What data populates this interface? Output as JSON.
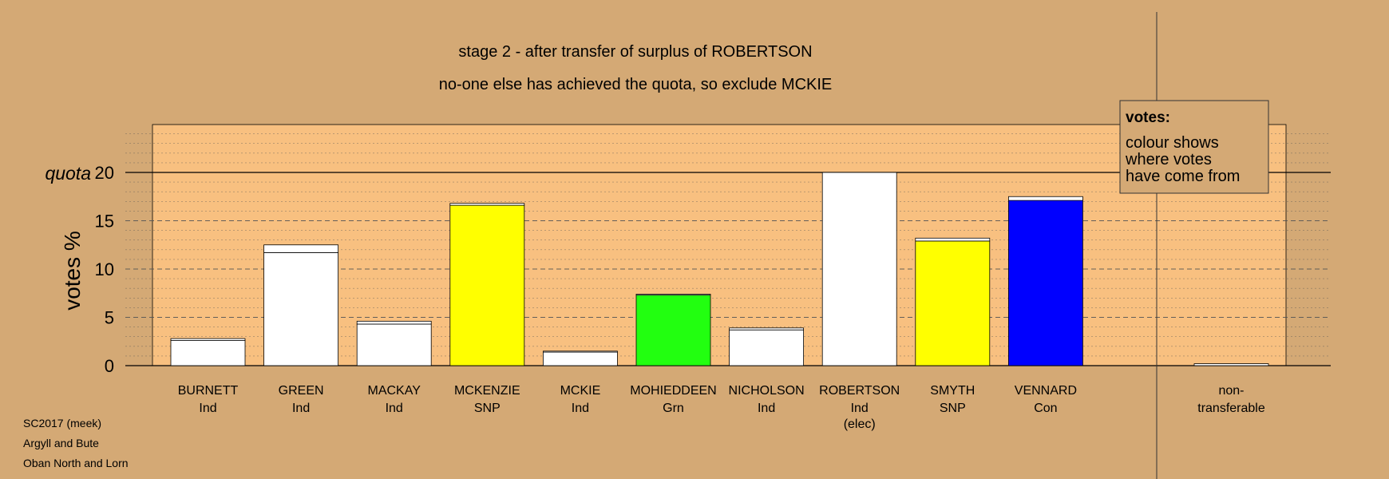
{
  "chart_data": {
    "type": "bar",
    "title": "stage 2 - after transfer of surplus of ROBERTSON",
    "subtitle": "no-one else has achieved the quota, so exclude MCKIE",
    "ylabel": "votes %",
    "ylim": [
      0,
      25
    ],
    "yticks": [
      0,
      5,
      10,
      15,
      20
    ],
    "quota": {
      "label": "quota",
      "value": 20
    },
    "candidates": [
      {
        "name": "BURNETT",
        "party": "Ind",
        "note": "",
        "base": 2.6,
        "transfer": 0.2,
        "base_color": "#ffffff"
      },
      {
        "name": "GREEN",
        "party": "Ind",
        "note": "",
        "base": 11.7,
        "transfer": 0.8,
        "base_color": "#ffffff"
      },
      {
        "name": "MACKAY",
        "party": "Ind",
        "note": "",
        "base": 4.3,
        "transfer": 0.3,
        "base_color": "#ffffff"
      },
      {
        "name": "MCKENZIE",
        "party": "SNP",
        "note": "",
        "base": 16.6,
        "transfer": 0.2,
        "base_color": "#ffff00"
      },
      {
        "name": "MCKIE",
        "party": "Ind",
        "note": "",
        "base": 1.4,
        "transfer": 0.1,
        "base_color": "#ffffff"
      },
      {
        "name": "MOHIEDDEEN",
        "party": "Grn",
        "note": "",
        "base": 7.3,
        "transfer": 0.1,
        "base_color": "#22ff10"
      },
      {
        "name": "NICHOLSON",
        "party": "Ind",
        "note": "",
        "base": 3.7,
        "transfer": 0.2,
        "base_color": "#ffffff"
      },
      {
        "name": "ROBERTSON",
        "party": "Ind",
        "note": "(elec)",
        "base": 20.0,
        "transfer": 0.0,
        "base_color": "#ffffff"
      },
      {
        "name": "SMYTH",
        "party": "SNP",
        "note": "",
        "base": 12.9,
        "transfer": 0.3,
        "base_color": "#ffff00"
      },
      {
        "name": "VENNARD",
        "party": "Con",
        "note": "",
        "base": 17.1,
        "transfer": 0.4,
        "base_color": "#0000ff"
      }
    ],
    "nontransferable": {
      "label_line1": "non-",
      "label_line2": "transferable",
      "value": 0.2
    },
    "legend": {
      "heading": "votes:",
      "lines": [
        "colour shows",
        "where votes",
        "have come from"
      ],
      "placement": "top-right"
    },
    "grid": true
  },
  "footer": {
    "line1": "SC2017 (meek)",
    "line2": "Argyll and Bute",
    "line3": "Oban North and Lorn"
  }
}
